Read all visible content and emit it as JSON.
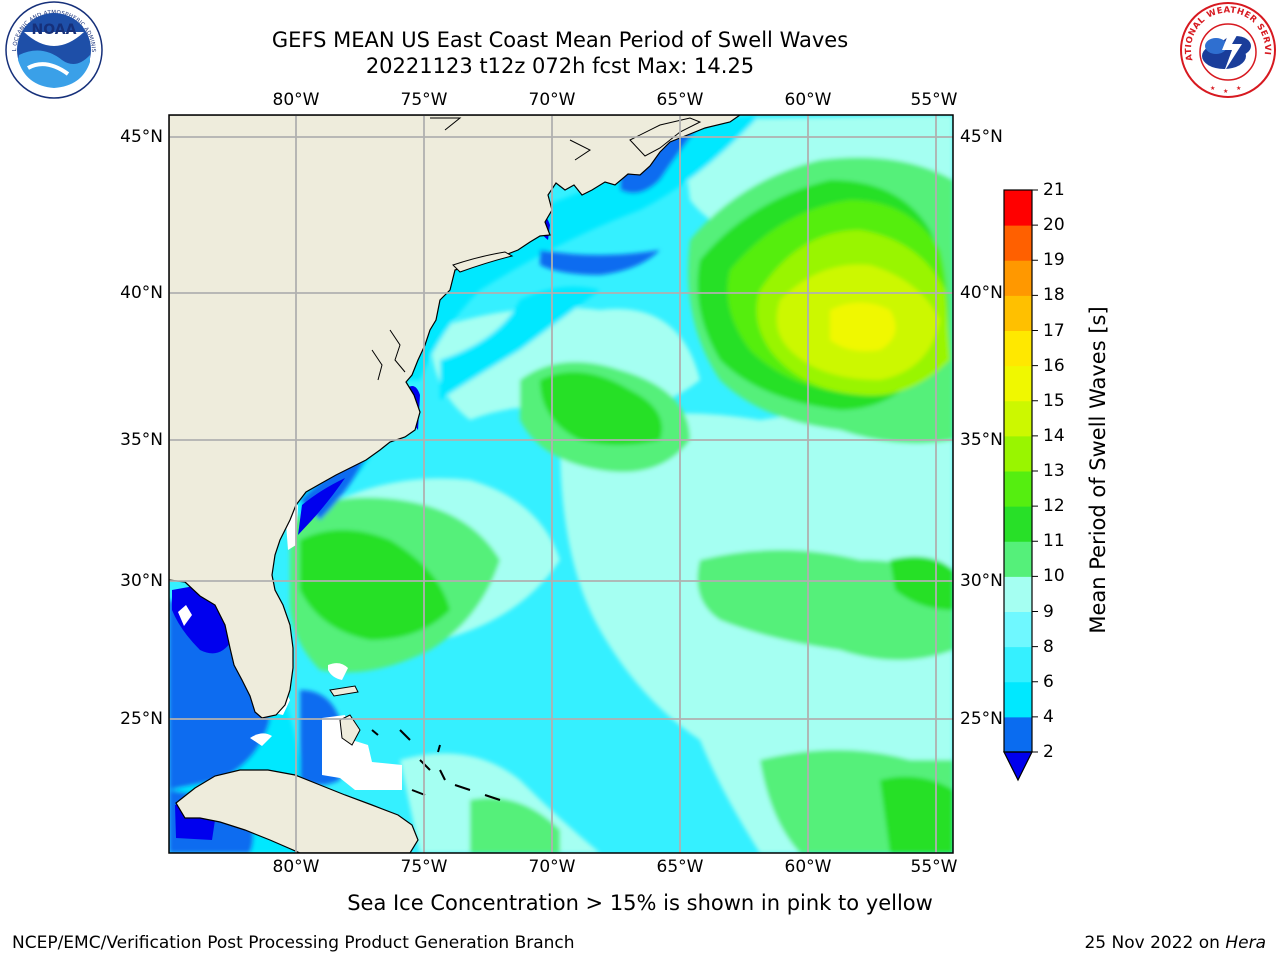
{
  "title_line1": "GEFS MEAN US East Coast Mean Period of Swell Waves",
  "title_line2": "20221123 t12z 072h fcst   Max: 14.25",
  "lon_labels": [
    "80°W",
    "75°W",
    "70°W",
    "65°W",
    "60°W",
    "55°W"
  ],
  "lat_labels": [
    "45°N",
    "40°N",
    "35°N",
    "30°N",
    "25°N"
  ],
  "colorbar": {
    "label": "Mean Period of Swell Waves [s]",
    "ticks": [
      "2",
      "4",
      "6",
      "8",
      "9",
      "10",
      "11",
      "12",
      "13",
      "14",
      "15",
      "16",
      "17",
      "18",
      "19",
      "20",
      "21"
    ],
    "colors": [
      "#0a6cf0",
      "#00e8ff",
      "#35f0ff",
      "#6ff8ff",
      "#a5fff2",
      "#55f07a",
      "#28e028",
      "#55ee10",
      "#99f500",
      "#ccf800",
      "#f0f800",
      "#ffe800",
      "#ffc000",
      "#ff9800",
      "#ff6000",
      "#ff3000",
      "#ff0000"
    ],
    "under_color": "#0000ee"
  },
  "logos": {
    "noaa": {
      "text": "NOAA",
      "ring_text_top": "NATIONAL OCEANIC AND ATMOSPHERIC ADMINISTRATION",
      "ring_text_bottom": "U.S. DEPARTMENT OF COMMERCE"
    },
    "nws": {
      "ring_text": "NATIONAL WEATHER SERVICE"
    }
  },
  "note": "Sea Ice Concentration > 15% is shown in pink to yellow",
  "footer_left": "NCEP/EMC/Verification Post Processing Product Generation Branch",
  "footer_right_date": "25 Nov 2022 on ",
  "footer_right_host": "Hera"
}
